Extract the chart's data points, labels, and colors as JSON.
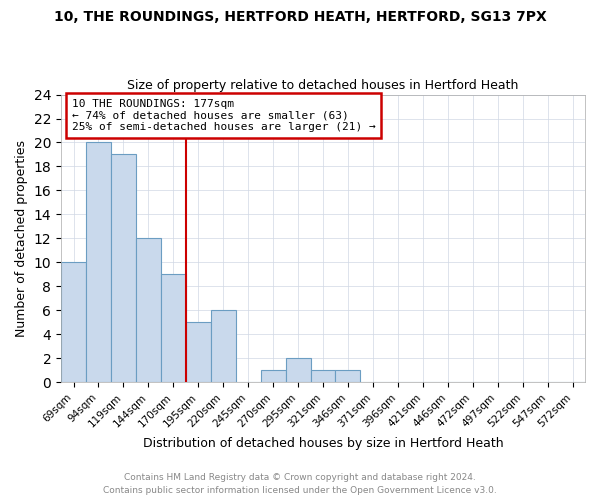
{
  "title1": "10, THE ROUNDINGS, HERTFORD HEATH, HERTFORD, SG13 7PX",
  "title2": "Size of property relative to detached houses in Hertford Heath",
  "xlabel": "Distribution of detached houses by size in Hertford Heath",
  "ylabel": "Number of detached properties",
  "categories": [
    "69sqm",
    "94sqm",
    "119sqm",
    "144sqm",
    "170sqm",
    "195sqm",
    "220sqm",
    "245sqm",
    "270sqm",
    "295sqm",
    "321sqm",
    "346sqm",
    "371sqm",
    "396sqm",
    "421sqm",
    "446sqm",
    "472sqm",
    "497sqm",
    "522sqm",
    "547sqm",
    "572sqm"
  ],
  "values": [
    10,
    20,
    19,
    12,
    9,
    5,
    6,
    0,
    1,
    2,
    1,
    1,
    0,
    0,
    0,
    0,
    0,
    0,
    0,
    0,
    0
  ],
  "bar_color": "#c9d9ec",
  "bar_edge_color": "#6b9dc2",
  "annotation_box_text": "10 THE ROUNDINGS: 177sqm\n← 74% of detached houses are smaller (63)\n25% of semi-detached houses are larger (21) →",
  "vline_color": "#cc0000",
  "box_edge_color": "#cc0000",
  "ylim": [
    0,
    24
  ],
  "yticks": [
    0,
    2,
    4,
    6,
    8,
    10,
    12,
    14,
    16,
    18,
    20,
    22,
    24
  ],
  "footnote1": "Contains HM Land Registry data © Crown copyright and database right 2024.",
  "footnote2": "Contains public sector information licensed under the Open Government Licence v3.0.",
  "background_color": "#ffffff",
  "grid_color": "#d0d8e4"
}
